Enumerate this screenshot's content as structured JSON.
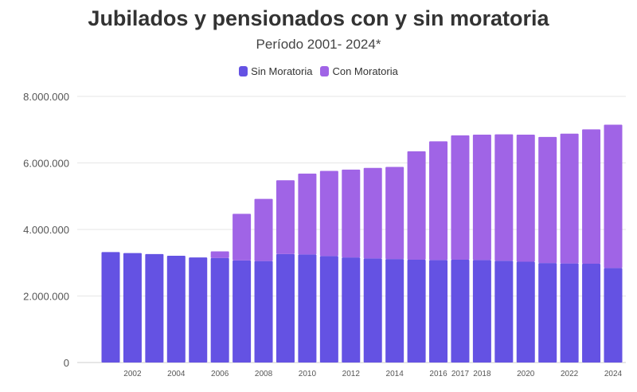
{
  "chart_data": {
    "type": "bar",
    "stacked": true,
    "title": "Jubilados y pensionados con y sin moratoria",
    "subtitle": "Período 2001- 2024*",
    "categories": [
      "2001",
      "2002",
      "2003",
      "2004",
      "2005",
      "2006",
      "2007",
      "2008",
      "2009",
      "2010",
      "2011",
      "2012",
      "2013",
      "2014",
      "2015",
      "2016",
      "2017",
      "2018",
      "2019",
      "2020",
      "2021",
      "2022",
      "2023",
      "2024"
    ],
    "x_tick_labels": [
      "2002",
      "2004",
      "2006",
      "2008",
      "2010",
      "2012",
      "2014",
      "2016",
      "2017",
      "2018",
      "2020",
      "2022",
      "2024"
    ],
    "series": [
      {
        "name": "Sin Moratoria",
        "color": "#6452E3",
        "values": [
          3320000,
          3290000,
          3260000,
          3210000,
          3160000,
          3140000,
          3070000,
          3050000,
          3260000,
          3250000,
          3200000,
          3160000,
          3130000,
          3110000,
          3090000,
          3080000,
          3090000,
          3080000,
          3060000,
          3030000,
          2990000,
          2980000,
          2970000,
          2840000
        ]
      },
      {
        "name": "Con Moratoria",
        "color": "#A064E6",
        "values": [
          0,
          0,
          0,
          0,
          0,
          200000,
          1400000,
          1870000,
          2220000,
          2430000,
          2560000,
          2640000,
          2720000,
          2770000,
          3260000,
          3570000,
          3740000,
          3770000,
          3800000,
          3820000,
          3790000,
          3900000,
          4040000,
          4310000
        ]
      }
    ],
    "yticks": [
      "0",
      "2.000.000",
      "4.000.000",
      "6.000.000",
      "8.000.000"
    ],
    "ylim": [
      0,
      8000000
    ],
    "grid": true,
    "legend": "top-center"
  }
}
